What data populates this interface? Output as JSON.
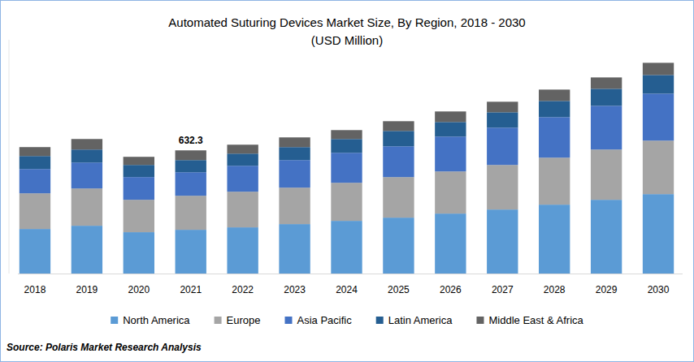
{
  "chart_data": {
    "type": "bar",
    "title": "Automated Suturing Devices Market Size, By Region, 2018 - 2030",
    "subtitle": "(USD Million)",
    "source": "Source: Polaris Market Research Analysis",
    "categories": [
      "2018",
      "2019",
      "2020",
      "2021",
      "2022",
      "2023",
      "2024",
      "2025",
      "2026",
      "2027",
      "2028",
      "2029",
      "2030"
    ],
    "series": [
      {
        "name": "North America",
        "color": "#5b9bd5",
        "values": [
          228.8,
          245.4,
          212.2,
          224.6,
          237.1,
          253.8,
          270.4,
          287.0,
          307.8,
          328.6,
          353.6,
          378.6,
          407.7
        ]
      },
      {
        "name": "Europe",
        "color": "#a5a5a5",
        "values": [
          183.0,
          191.4,
          166.4,
          174.7,
          183.0,
          187.2,
          195.5,
          208.0,
          216.3,
          228.8,
          241.3,
          257.9,
          274.6
        ]
      },
      {
        "name": "Asia Pacific",
        "color": "#4472c4",
        "values": [
          124.8,
          133.1,
          116.5,
          120.6,
          133.1,
          141.4,
          153.9,
          158.1,
          178.9,
          191.4,
          208.0,
          224.6,
          241.3
        ]
      },
      {
        "name": "Latin America",
        "color": "#255e91",
        "values": [
          66.6,
          66.6,
          62.4,
          62.4,
          62.4,
          66.6,
          70.7,
          79.0,
          74.9,
          79.0,
          83.2,
          87.4,
          95.7
        ]
      },
      {
        "name": "Middle East & Africa",
        "color": "#636363",
        "values": [
          45.8,
          54.1,
          41.6,
          50.0,
          45.8,
          49.9,
          45.8,
          49.9,
          54.1,
          54.1,
          58.2,
          58.2,
          62.4
        ]
      }
    ],
    "annotations": [
      {
        "category": "2021",
        "value": 632.3
      }
    ],
    "ylim": [
      0,
      1200
    ],
    "stacked": true,
    "grid": false,
    "legend": "bottom",
    "tick_labels": "x"
  }
}
